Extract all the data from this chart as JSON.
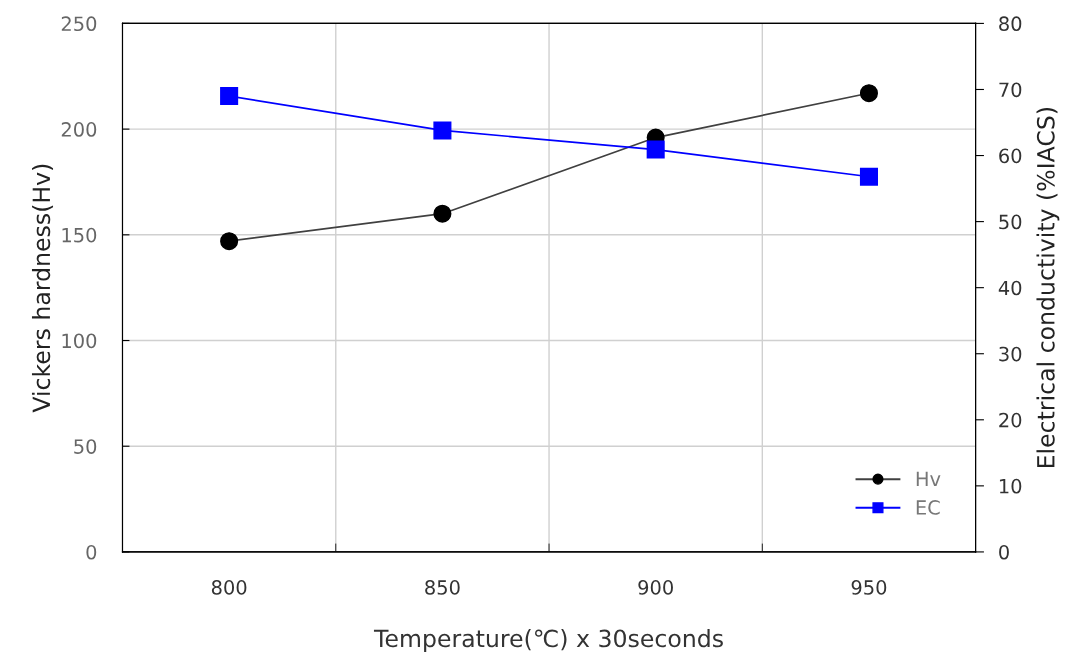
{
  "chart_data": {
    "type": "line",
    "xlabel": "Temperature(℃) x 30seconds",
    "ylabel": "Vickers hardness(Hv)",
    "y2label": "Electrical conductivity (%IACS)",
    "categories": [
      "800",
      "850",
      "900",
      "950"
    ],
    "series": [
      {
        "name": "Hv",
        "color": "#000000",
        "marker": "circle",
        "values": [
          147,
          160,
          196,
          217
        ]
      },
      {
        "name": "EC",
        "color": "#0000ff",
        "marker": "square",
        "axis": "y2",
        "values": [
          69.0,
          63.8,
          60.9,
          56.8
        ]
      }
    ],
    "ylim": [
      0,
      250
    ],
    "yticks": [
      0,
      50,
      100,
      150,
      200,
      250
    ],
    "y2lim": [
      0,
      80
    ],
    "y2ticks": [
      0,
      10,
      20,
      30,
      40,
      50,
      60,
      70,
      80
    ],
    "grid": true,
    "legend": "bottom right",
    "line_style": "solid"
  }
}
